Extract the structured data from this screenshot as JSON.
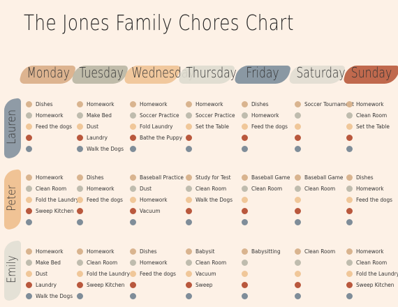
{
  "title": "The Jones Family Chores Chart",
  "days": [
    {
      "label": "Monday",
      "color": "#d9ad86"
    },
    {
      "label": "Tuesday",
      "color": "#b9b6a3"
    },
    {
      "label": "Wednesday",
      "color": "#f0c395"
    },
    {
      "label": "Thursday",
      "color": "#dedbcf"
    },
    {
      "label": "Friday",
      "color": "#7d8e9b"
    },
    {
      "label": "Saturday",
      "color": "#e1ddd1"
    },
    {
      "label": "Sunday",
      "color": "#b95a3c"
    }
  ],
  "people": [
    {
      "name": "Lauren",
      "color": "#8f9ba6",
      "tasks": [
        [
          "Dishes",
          "Homework",
          "Feed the dogs",
          "",
          ""
        ],
        [
          "Homework",
          "Make Bed",
          "Dust",
          "Laundry",
          "Walk the Dogs"
        ],
        [
          "Homework",
          "Soccer Practice",
          "Fold Laundry",
          "Bathe the Puppy",
          ""
        ],
        [
          "Homework",
          "Soccer Practice",
          "Set the Table",
          "",
          ""
        ],
        [
          "Dishes",
          "Homework",
          "Feed the dogs",
          "",
          ""
        ],
        [
          "Soccer Tournament",
          "",
          "",
          "",
          ""
        ],
        [
          "Homework",
          "Clean Room",
          "Set the Table",
          "",
          ""
        ]
      ]
    },
    {
      "name": "Peter",
      "color": "#f0c395",
      "tasks": [
        [
          "Homework",
          "Clean Room",
          "Fold the Laundry",
          "Sweep Kitchen",
          ""
        ],
        [
          "Dishes",
          "Homework",
          "Feed the dogs",
          "",
          ""
        ],
        [
          "Baseball Practice",
          "Dust",
          "Homework",
          "Vacuum",
          ""
        ],
        [
          "Study for Test",
          "Clean Room",
          "Walk the Dogs",
          "",
          ""
        ],
        [
          "Baseball Game",
          "Clean Room",
          "",
          "",
          ""
        ],
        [
          "Baseball Game",
          "Clean Room",
          "",
          "",
          ""
        ],
        [
          "Dishes",
          "Homework",
          "Feed the dogs",
          "",
          ""
        ]
      ]
    },
    {
      "name": "Emily",
      "color": "#e4e1d6",
      "tasks": [
        [
          "Homework",
          "Make Bed",
          "Dust",
          "Laundry",
          "Walk the Dogs"
        ],
        [
          "Homework",
          "Clean Room",
          "Fold the Laundry",
          "Sweep Kitchen",
          ""
        ],
        [
          "Dishes",
          "Homework",
          "Feed the dogs",
          "",
          ""
        ],
        [
          "Babysit",
          "Clean Room",
          "Vacuum",
          "Sweep",
          ""
        ],
        [
          "Babysitting",
          "",
          "",
          "",
          ""
        ],
        [
          "Clean Room",
          "",
          "",
          "",
          ""
        ],
        [
          "Homework",
          "Clean Room",
          "Fold the Laundry",
          "Sweep Kitchen",
          ""
        ]
      ]
    }
  ],
  "dot_colors": [
    "#d9b48f",
    "#bfbcae",
    "#f0c799",
    "#b9583d",
    "#7f8d99"
  ]
}
